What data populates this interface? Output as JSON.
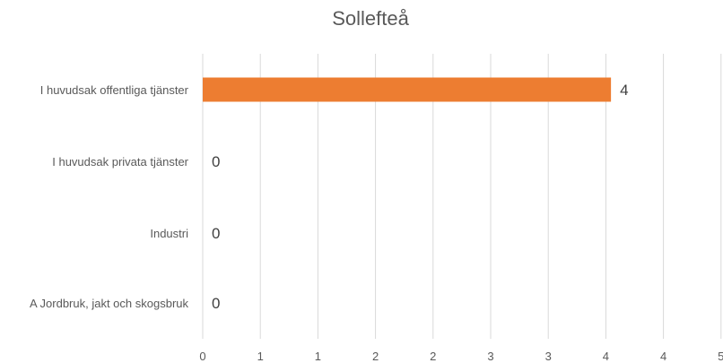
{
  "chart_data": {
    "type": "bar",
    "orientation": "horizontal",
    "title": "Sollefteå",
    "categories": [
      "I huvudsak offentliga tjänster",
      "I huvudsak privata tjänster",
      "Industri",
      "A Jordbruk, jakt och skogsbruk"
    ],
    "values": [
      4,
      0,
      0,
      0
    ],
    "data_labels": [
      "4",
      "0",
      "0",
      "0"
    ],
    "x_tick_labels": [
      "0",
      "1",
      "1",
      "2",
      "2",
      "3",
      "3",
      "4",
      "4",
      "5"
    ],
    "xlim": [
      0,
      4.5
    ],
    "grid": true,
    "legend": "none",
    "colors": {
      "bar": "#ED7D31",
      "grid": "#D9D9D9",
      "text": "#595959"
    }
  }
}
